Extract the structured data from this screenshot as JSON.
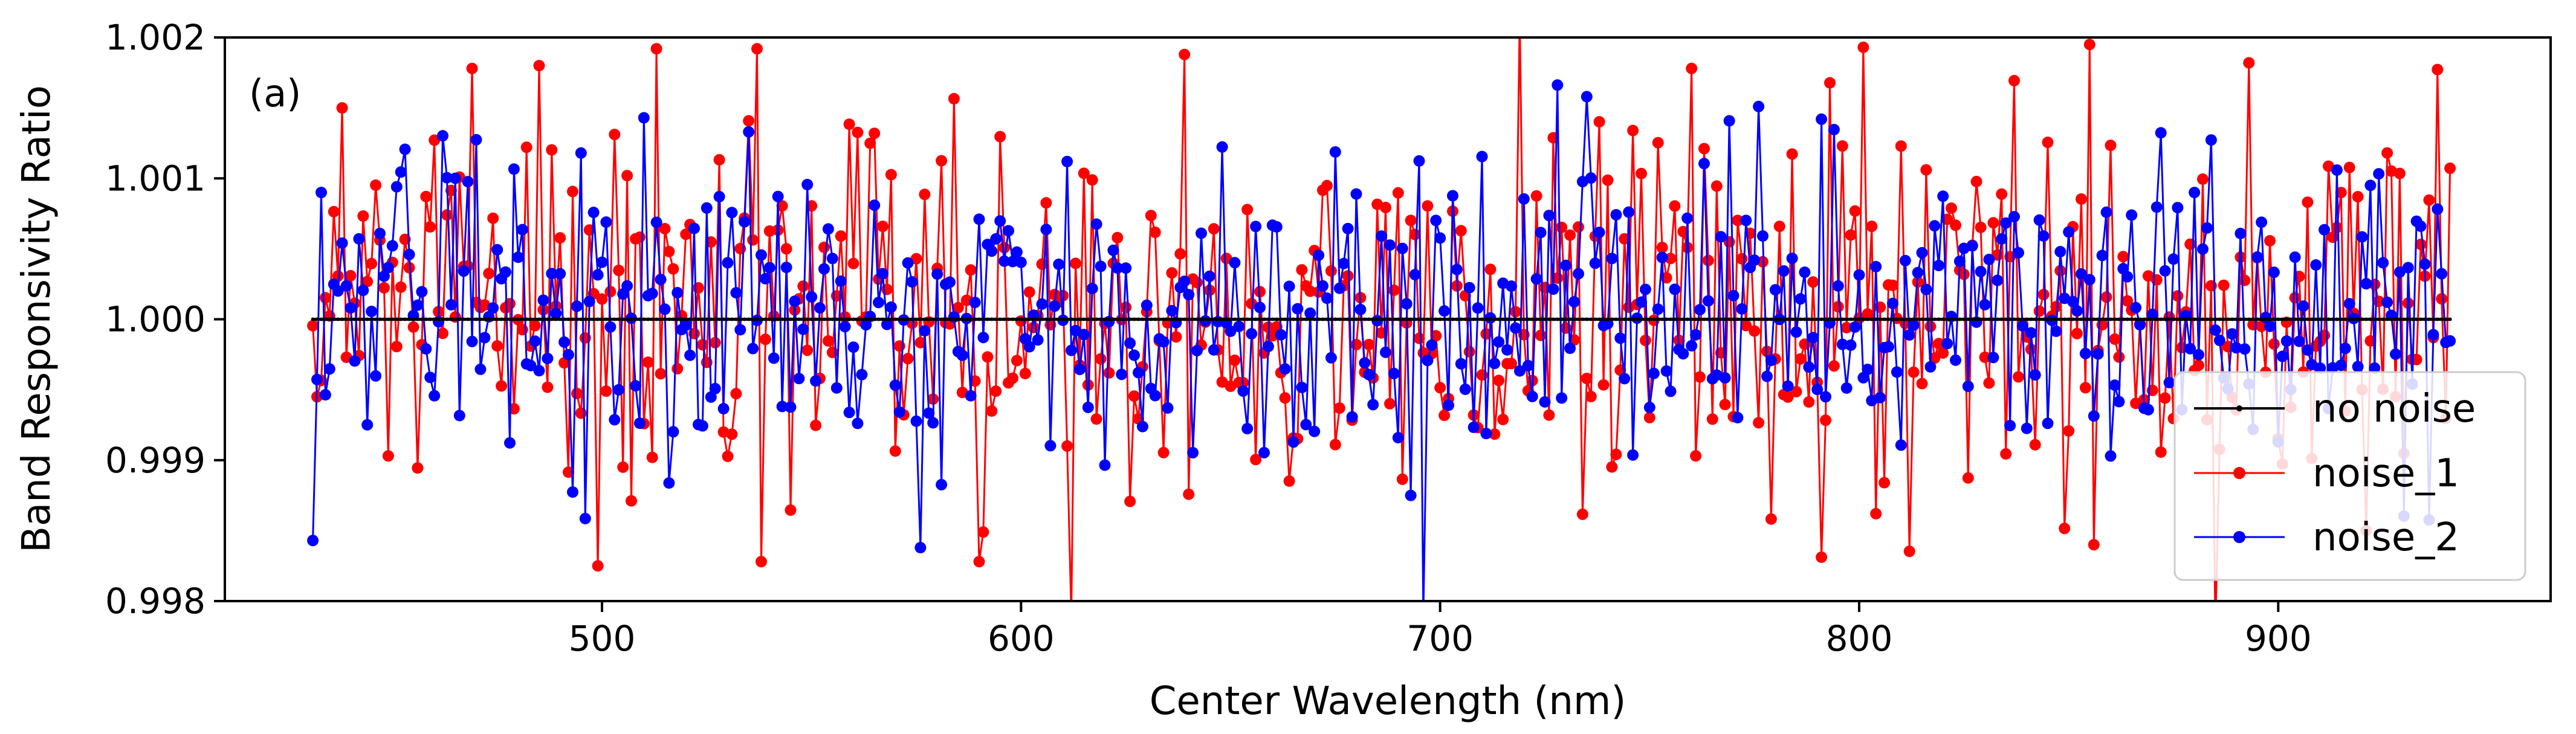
{
  "chart_data": {
    "type": "line",
    "panel_label": "(a)",
    "xlabel": "Center Wavelength (nm)",
    "ylabel": "Band Responsivity Ratio",
    "xlim": [
      410,
      965
    ],
    "ylim": [
      0.998,
      1.002
    ],
    "xticks": [
      500,
      600,
      700,
      800,
      900
    ],
    "xtick_labels": [
      "500",
      "600",
      "700",
      "800",
      "900"
    ],
    "yticks": [
      0.998,
      0.999,
      1.0,
      1.001,
      1.002
    ],
    "ytick_labels": [
      "0.998",
      "0.999",
      "1.000",
      "1.001",
      "1.002"
    ],
    "grid": false,
    "legend_position": "lower-right",
    "x_range": [
      431,
      941
    ],
    "points_per_series": 511,
    "series": [
      {
        "name": "no noise",
        "color": "#000000",
        "marker": "point",
        "values": "constant 1.000 for every wavelength from 431 to 941 nm",
        "constant_value": 1.0
      },
      {
        "name": "noise_1",
        "color": "#ff0000",
        "marker": "circle",
        "sigma": 0.00065,
        "seed": 12345,
        "highlights": [
          {
            "x": 432,
            "y": 0.99945
          },
          {
            "x": 438,
            "y": 1.0015
          },
          {
            "x": 469,
            "y": 1.00178
          },
          {
            "x": 485,
            "y": 1.0018
          },
          {
            "x": 499,
            "y": 0.99825
          },
          {
            "x": 513,
            "y": 1.00192
          },
          {
            "x": 537,
            "y": 1.00192
          },
          {
            "x": 538,
            "y": 0.99828
          },
          {
            "x": 590,
            "y": 0.99828
          },
          {
            "x": 612,
            "y": 0.9979
          },
          {
            "x": 719,
            "y": 1.00215
          },
          {
            "x": 760,
            "y": 1.00178
          },
          {
            "x": 801,
            "y": 1.00193
          },
          {
            "x": 804,
            "y": 0.99862
          },
          {
            "x": 855,
            "y": 1.00195
          },
          {
            "x": 856,
            "y": 0.9984
          },
          {
            "x": 893,
            "y": 1.00182
          },
          {
            "x": 885,
            "y": 0.9978
          }
        ]
      },
      {
        "name": "noise_2",
        "color": "#0000ff",
        "marker": "circle",
        "sigma": 0.0005,
        "seed": 67890,
        "highlights": [
          {
            "x": 431,
            "y": 0.99843
          },
          {
            "x": 433,
            "y": 1.0009
          },
          {
            "x": 495,
            "y": 1.00118
          },
          {
            "x": 510,
            "y": 1.00143
          },
          {
            "x": 535,
            "y": 1.00133
          },
          {
            "x": 693,
            "y": 0.99875
          },
          {
            "x": 696,
            "y": 0.9979
          },
          {
            "x": 735,
            "y": 1.00158
          },
          {
            "x": 776,
            "y": 1.00151
          },
          {
            "x": 791,
            "y": 1.00142
          },
          {
            "x": 860,
            "y": 0.99903
          },
          {
            "x": 922,
            "y": 1.00095
          }
        ]
      }
    ]
  }
}
